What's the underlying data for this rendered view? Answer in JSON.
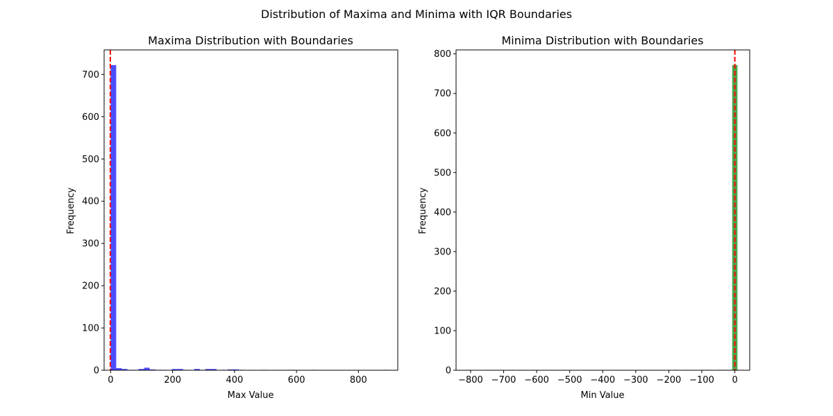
{
  "figure": {
    "suptitle": "Distribution of Maxima and Minima with IQR Boundaries"
  },
  "colors": {
    "maxima_bars": "#0000ff",
    "minima_bars": "#008000",
    "boundary_line": "#ff0000"
  },
  "chart_data": [
    {
      "type": "bar",
      "title": "Maxima Distribution with Boundaries",
      "xlabel": "Max Value",
      "ylabel": "Frequency",
      "xlim": [
        -21,
        927
      ],
      "ylim": [
        0,
        758
      ],
      "xticks": [
        0,
        200,
        400,
        600,
        800
      ],
      "yticks": [
        0,
        100,
        200,
        300,
        400,
        500,
        600,
        700
      ],
      "grid": false,
      "bar_color": "#0000ff",
      "bar_alpha": 0.7,
      "bins": [
        {
          "x0": 0,
          "x1": 18,
          "count": 722
        },
        {
          "x0": 18,
          "x1": 36,
          "count": 5
        },
        {
          "x0": 36,
          "x1": 54,
          "count": 3
        },
        {
          "x0": 54,
          "x1": 72,
          "count": 1
        },
        {
          "x0": 72,
          "x1": 90,
          "count": 1
        },
        {
          "x0": 90,
          "x1": 108,
          "count": 3
        },
        {
          "x0": 108,
          "x1": 126,
          "count": 6
        },
        {
          "x0": 126,
          "x1": 144,
          "count": 2
        },
        {
          "x0": 144,
          "x1": 162,
          "count": 1
        },
        {
          "x0": 162,
          "x1": 180,
          "count": 1
        },
        {
          "x0": 198,
          "x1": 216,
          "count": 3
        },
        {
          "x0": 216,
          "x1": 234,
          "count": 3
        },
        {
          "x0": 234,
          "x1": 252,
          "count": 1
        },
        {
          "x0": 270,
          "x1": 288,
          "count": 3
        },
        {
          "x0": 288,
          "x1": 306,
          "count": 1
        },
        {
          "x0": 306,
          "x1": 324,
          "count": 3
        },
        {
          "x0": 324,
          "x1": 342,
          "count": 3
        },
        {
          "x0": 360,
          "x1": 378,
          "count": 1
        },
        {
          "x0": 378,
          "x1": 396,
          "count": 2
        },
        {
          "x0": 396,
          "x1": 414,
          "count": 2
        },
        {
          "x0": 414,
          "x1": 432,
          "count": 1
        },
        {
          "x0": 486,
          "x1": 504,
          "count": 1
        },
        {
          "x0": 576,
          "x1": 594,
          "count": 1
        },
        {
          "x0": 648,
          "x1": 666,
          "count": 1
        },
        {
          "x0": 882,
          "x1": 900,
          "count": 1
        }
      ],
      "boundaries": [
        -1
      ]
    },
    {
      "type": "bar",
      "title": "Minima Distribution with Boundaries",
      "xlabel": "Min Value",
      "ylabel": "Frequency",
      "xlim": [
        -844,
        45
      ],
      "ylim": [
        0,
        810
      ],
      "xticks": [
        -800,
        -700,
        -600,
        -500,
        -400,
        -300,
        -200,
        -100,
        0
      ],
      "yticks": [
        0,
        100,
        200,
        300,
        400,
        500,
        600,
        700,
        800
      ],
      "grid": false,
      "bar_color": "#008000",
      "bar_alpha": 0.7,
      "bins": [
        {
          "x0": -815,
          "x1": -799,
          "count": 1
        },
        {
          "x0": -183,
          "x1": -167,
          "count": 1
        },
        {
          "x0": -152,
          "x1": -136,
          "count": 1
        },
        {
          "x0": -104,
          "x1": -88,
          "count": 1
        },
        {
          "x0": -88,
          "x1": -72,
          "count": 1
        },
        {
          "x0": -56,
          "x1": -40,
          "count": 1
        },
        {
          "x0": -40,
          "x1": -24,
          "count": 1
        },
        {
          "x0": -24,
          "x1": -8,
          "count": 1
        },
        {
          "x0": -8,
          "x1": 8,
          "count": 772
        }
      ],
      "boundaries": [
        0
      ]
    }
  ]
}
